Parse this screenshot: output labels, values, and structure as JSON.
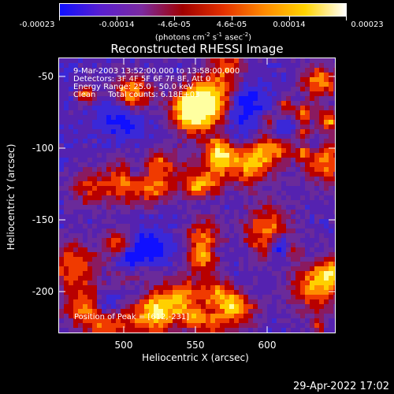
{
  "colorbar": {
    "labels": [
      "-0.00023",
      "-0.00014",
      "-4.6e-05",
      "4.6e-05",
      "0.00014",
      "0.00023"
    ],
    "units_parts": [
      "(photons cm",
      "-2",
      " s",
      "-1",
      " asec",
      "-2",
      ")"
    ],
    "colors": [
      "#1010ff",
      "#5a1fd0",
      "#7b2aa0",
      "#a00000",
      "#e33000",
      "#ff8a00",
      "#ffd400",
      "#ffffff"
    ]
  },
  "title": "Reconstructed RHESSI Image",
  "overlay": {
    "line1": "9-Mar-2003 13:52:00.000 to 13:58:00.000",
    "line2": "Detectors: 3F 4F 5F 6F 7F 8F, Att 0",
    "line3": "Energy Range: 25.0 - 50.0 keV",
    "line4": "Clean     Total counts: 6.18E+03",
    "peak": "Position of Peak = [612,-231]"
  },
  "xaxis": {
    "label": "Heliocentric X (arcsec)",
    "ticks": [
      "500",
      "550",
      "600"
    ]
  },
  "yaxis": {
    "label": "Heliocentric Y (arcsec)",
    "ticks": [
      "-50",
      "-100",
      "-150",
      "-200"
    ]
  },
  "timestamp": "29-Apr-2022 17:02",
  "chart_data": {
    "type": "heatmap",
    "title": "Reconstructed RHESSI Image",
    "xlabel": "Heliocentric X (arcsec)",
    "ylabel": "Heliocentric Y (arcsec)",
    "xlim": [
      460,
      646
    ],
    "ylim": [
      -230,
      -38
    ],
    "peak": [
      612,
      -231
    ],
    "color_range": [
      -0.00023,
      0.00023
    ]
  }
}
